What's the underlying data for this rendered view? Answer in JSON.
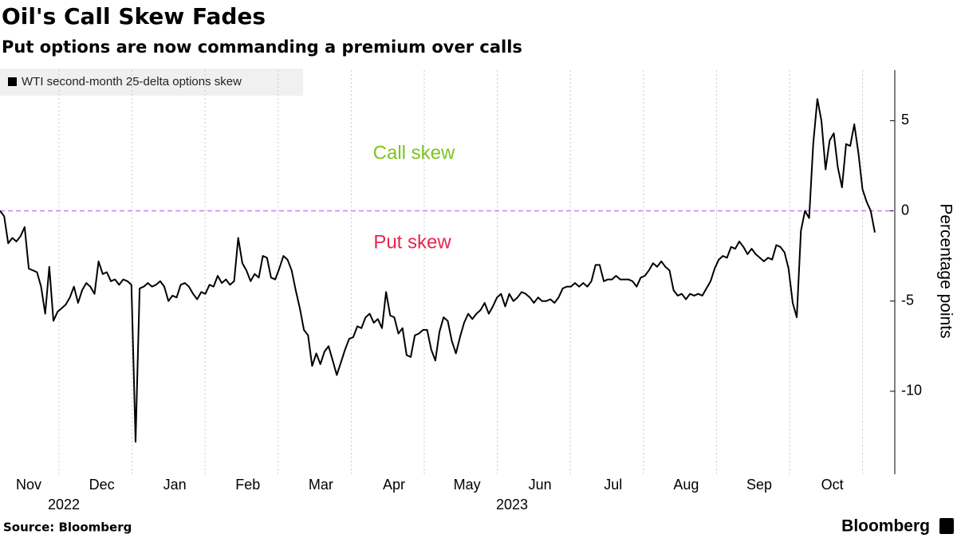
{
  "chart_data": {
    "type": "line",
    "title": "Oil's Call Skew Fades",
    "subtitle": "Put options are now commanding a premium over calls",
    "series": [
      {
        "name": "WTI second-month 25-delta options skew",
        "color": "#000000",
        "values": [
          0,
          -0.3,
          -1.8,
          -1.5,
          -1.7,
          -1.4,
          -0.9,
          -3.2,
          -3.3,
          -3.4,
          -4.2,
          -5.7,
          -3.1,
          -6.1,
          -5.6,
          -5.4,
          -5.2,
          -4.8,
          -4.2,
          -5.1,
          -4.4,
          -4.0,
          -4.2,
          -4.6,
          -2.8,
          -3.5,
          -3.4,
          -3.9,
          -3.8,
          -4.1,
          -3.8,
          -3.9,
          -4.1,
          -12.8,
          -4.3,
          -4.2,
          -4.0,
          -4.2,
          -4.1,
          -3.9,
          -4.2,
          -5.0,
          -4.7,
          -4.8,
          -4.1,
          -4.0,
          -4.2,
          -4.6,
          -4.9,
          -4.5,
          -4.6,
          -4.1,
          -4.2,
          -3.6,
          -4.0,
          -3.8,
          -4.1,
          -3.9,
          -1.5,
          -2.9,
          -3.3,
          -3.9,
          -3.5,
          -3.7,
          -2.5,
          -2.6,
          -3.7,
          -3.8,
          -3.2,
          -2.5,
          -2.7,
          -3.3,
          -4.4,
          -5.4,
          -6.6,
          -6.9,
          -8.6,
          -7.9,
          -8.5,
          -7.8,
          -7.5,
          -8.3,
          -9.1,
          -8.4,
          -7.7,
          -7.1,
          -7.0,
          -6.4,
          -6.5,
          -5.9,
          -5.7,
          -6.2,
          -6.0,
          -6.5,
          -4.5,
          -5.8,
          -5.9,
          -6.8,
          -6.5,
          -8.0,
          -8.1,
          -6.9,
          -6.8,
          -6.6,
          -6.6,
          -7.7,
          -8.3,
          -6.7,
          -5.9,
          -6.1,
          -7.2,
          -7.9,
          -7.0,
          -6.2,
          -5.7,
          -6.0,
          -5.7,
          -5.5,
          -5.1,
          -5.7,
          -5.3,
          -4.8,
          -4.6,
          -5.3,
          -4.6,
          -5.0,
          -4.8,
          -4.5,
          -4.6,
          -4.8,
          -5.1,
          -4.8,
          -5.0,
          -5.0,
          -4.9,
          -5.1,
          -4.8,
          -4.3,
          -4.2,
          -4.2,
          -4.0,
          -4.2,
          -4.0,
          -4.2,
          -3.9,
          -3.0,
          -3.0,
          -3.9,
          -3.8,
          -3.8,
          -3.6,
          -3.8,
          -3.8,
          -3.8,
          -3.9,
          -4.2,
          -3.7,
          -3.6,
          -3.3,
          -2.9,
          -3.1,
          -2.8,
          -3.1,
          -3.3,
          -4.4,
          -4.7,
          -4.6,
          -4.9,
          -4.6,
          -4.7,
          -4.6,
          -4.7,
          -4.3,
          -3.9,
          -3.2,
          -2.7,
          -2.5,
          -2.6,
          -2.0,
          -2.1,
          -1.7,
          -2.0,
          -2.4,
          -2.1,
          -2.4,
          -2.6,
          -2.8,
          -2.6,
          -2.7,
          -1.9,
          -2.0,
          -2.3,
          -3.2,
          -5.1,
          -5.9,
          -1.1,
          0.0,
          -0.4,
          3.7,
          6.2,
          5.0,
          2.3,
          3.9,
          4.3,
          2.4,
          1.3,
          3.7,
          3.6,
          4.8,
          3.2,
          1.2,
          0.5,
          0.0,
          -1.2
        ]
      }
    ],
    "x_labels": [
      "Nov",
      "Dec",
      "Jan",
      "Feb",
      "Mar",
      "Apr",
      "May",
      "Jun",
      "Jul",
      "Aug",
      "Sep",
      "Oct"
    ],
    "year_labels": [
      "2022",
      "2023"
    ],
    "y_axis_label": "Percentage points",
    "ylim": [
      -14.6,
      7.8
    ],
    "yticks": [
      -10,
      -5,
      0,
      5
    ],
    "grid": "x",
    "reference_line": {
      "value": 0,
      "color": "#c77dff"
    },
    "annotations": [
      {
        "text": "Call skew",
        "color": "#7dc41f"
      },
      {
        "text": "Put skew",
        "color": "#e8254e"
      }
    ],
    "legend": "top-left",
    "source": "Source: Bloomberg",
    "brand": "Bloomberg"
  }
}
